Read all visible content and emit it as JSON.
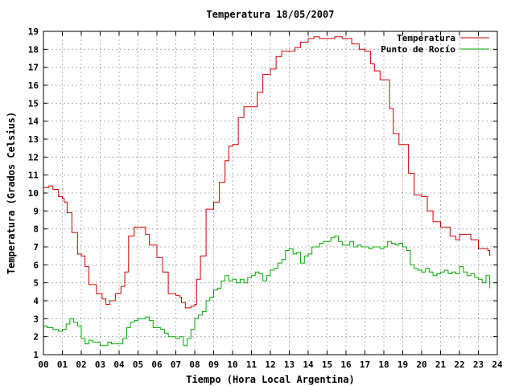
{
  "chart_data": {
    "type": "line",
    "title": "Temperatura 18/05/2007",
    "xlabel": "Tiempo (Hora Local Argentina)",
    "ylabel": "Temperatura (Grados Celsius)",
    "xlim": [
      0,
      24
    ],
    "ylim": [
      1,
      19
    ],
    "xticks": [
      "00",
      "01",
      "02",
      "03",
      "04",
      "05",
      "06",
      "07",
      "08",
      "09",
      "10",
      "11",
      "12",
      "13",
      "14",
      "15",
      "16",
      "17",
      "18",
      "19",
      "20",
      "21",
      "22",
      "23",
      "24"
    ],
    "yticks": [
      1,
      2,
      3,
      4,
      5,
      6,
      7,
      8,
      9,
      10,
      11,
      12,
      13,
      14,
      15,
      16,
      17,
      18,
      19
    ],
    "grid": true,
    "legend_position": "top-right",
    "series": [
      {
        "name": "Temperatura",
        "color": "#cc0000",
        "x": [
          0.0,
          0.3,
          0.5,
          0.8,
          1.0,
          1.1,
          1.25,
          1.5,
          1.8,
          2.0,
          2.2,
          2.4,
          2.8,
          3.0,
          3.1,
          3.3,
          3.5,
          3.8,
          4.0,
          4.1,
          4.3,
          4.5,
          4.8,
          5.0,
          5.2,
          5.4,
          5.6,
          6.0,
          6.1,
          6.3,
          6.6,
          7.0,
          7.2,
          7.3,
          7.5,
          7.8,
          8.0,
          8.1,
          8.3,
          8.6,
          9.0,
          9.3,
          9.6,
          9.8,
          10.0,
          10.3,
          10.6,
          11.0,
          11.3,
          11.6,
          12.0,
          12.3,
          12.6,
          13.0,
          13.3,
          13.6,
          14.0,
          14.3,
          14.6,
          15.0,
          15.4,
          15.8,
          16.0,
          16.3,
          16.7,
          17.0,
          17.3,
          17.5,
          17.8,
          18.0,
          18.3,
          18.5,
          18.8,
          19.0,
          19.3,
          19.6,
          20.0,
          20.3,
          20.6,
          21.0,
          21.2,
          21.5,
          21.8,
          22.0,
          22.3,
          22.6,
          23.0,
          23.3,
          23.5,
          23.6
        ],
        "values": [
          10.3,
          10.4,
          10.2,
          9.8,
          9.7,
          9.5,
          8.9,
          7.8,
          6.6,
          6.5,
          5.9,
          4.9,
          4.4,
          4.4,
          4.1,
          3.8,
          4.0,
          4.4,
          4.4,
          4.8,
          5.6,
          7.6,
          8.1,
          8.1,
          8.1,
          7.7,
          7.1,
          6.4,
          6.4,
          5.6,
          4.4,
          4.3,
          4.2,
          3.9,
          3.6,
          3.7,
          3.8,
          5.2,
          6.5,
          9.1,
          9.5,
          10.6,
          11.8,
          12.6,
          12.7,
          14.2,
          14.8,
          14.8,
          15.6,
          16.6,
          16.9,
          17.6,
          17.9,
          17.9,
          18.1,
          18.4,
          18.6,
          18.7,
          18.6,
          18.6,
          18.7,
          18.6,
          18.6,
          18.3,
          18.0,
          17.9,
          17.2,
          16.8,
          16.3,
          16.3,
          14.7,
          13.3,
          12.7,
          12.7,
          11.1,
          9.9,
          9.8,
          9.0,
          8.4,
          8.1,
          8.1,
          7.6,
          7.4,
          7.7,
          7.7,
          7.4,
          6.9,
          6.9,
          6.8,
          6.5
        ]
      },
      {
        "name": "Punto de Rocío",
        "color": "#00aa00",
        "x": [
          0.0,
          0.2,
          0.5,
          0.8,
          1.0,
          1.2,
          1.4,
          1.6,
          1.8,
          2.0,
          2.2,
          2.4,
          2.6,
          2.8,
          3.0,
          3.2,
          3.4,
          3.6,
          3.8,
          4.0,
          4.2,
          4.4,
          4.6,
          4.8,
          5.0,
          5.2,
          5.4,
          5.6,
          5.8,
          6.0,
          6.2,
          6.4,
          6.6,
          6.8,
          7.0,
          7.2,
          7.4,
          7.6,
          7.8,
          8.0,
          8.2,
          8.4,
          8.6,
          8.8,
          9.0,
          9.2,
          9.4,
          9.6,
          9.8,
          10.0,
          10.2,
          10.4,
          10.6,
          10.8,
          11.0,
          11.2,
          11.4,
          11.6,
          11.8,
          12.0,
          12.2,
          12.4,
          12.6,
          12.8,
          13.0,
          13.2,
          13.4,
          13.6,
          13.8,
          14.0,
          14.2,
          14.4,
          14.6,
          14.8,
          15.0,
          15.2,
          15.4,
          15.6,
          15.8,
          16.0,
          16.2,
          16.4,
          16.6,
          16.8,
          17.0,
          17.2,
          17.4,
          17.6,
          17.8,
          18.0,
          18.2,
          18.4,
          18.6,
          18.8,
          19.0,
          19.2,
          19.4,
          19.6,
          19.8,
          20.0,
          20.2,
          20.4,
          20.6,
          20.8,
          21.0,
          21.2,
          21.4,
          21.6,
          21.8,
          22.0,
          22.2,
          22.4,
          22.6,
          22.8,
          23.0,
          23.2,
          23.4,
          23.6
        ],
        "values": [
          2.6,
          2.5,
          2.4,
          2.3,
          2.4,
          2.7,
          3.0,
          2.8,
          2.6,
          1.9,
          1.6,
          1.8,
          1.7,
          1.7,
          1.5,
          1.5,
          1.7,
          1.6,
          1.6,
          1.6,
          1.9,
          2.5,
          2.8,
          2.9,
          3.0,
          3.0,
          3.1,
          2.9,
          2.5,
          2.5,
          2.4,
          2.2,
          2.0,
          2.0,
          1.9,
          2.0,
          1.5,
          1.9,
          2.4,
          3.0,
          3.2,
          3.4,
          4.0,
          4.2,
          4.6,
          4.7,
          5.1,
          5.4,
          5.1,
          5.2,
          5.0,
          5.2,
          5.0,
          5.3,
          5.4,
          5.6,
          5.5,
          5.1,
          5.4,
          5.7,
          5.8,
          6.1,
          6.3,
          6.8,
          6.9,
          6.6,
          6.7,
          6.1,
          6.5,
          6.6,
          7.0,
          7.0,
          7.2,
          7.3,
          7.3,
          7.5,
          7.6,
          7.3,
          7.1,
          7.1,
          7.3,
          7.0,
          7.1,
          7.0,
          7.0,
          6.9,
          7.0,
          7.0,
          6.9,
          7.0,
          7.3,
          7.2,
          7.1,
          7.2,
          7.0,
          6.8,
          6.0,
          5.8,
          5.7,
          5.6,
          5.8,
          5.6,
          5.4,
          5.5,
          5.6,
          5.7,
          5.5,
          5.6,
          5.5,
          5.9,
          5.6,
          5.4,
          5.5,
          5.3,
          5.2,
          5.0,
          5.4,
          4.7
        ]
      }
    ]
  }
}
